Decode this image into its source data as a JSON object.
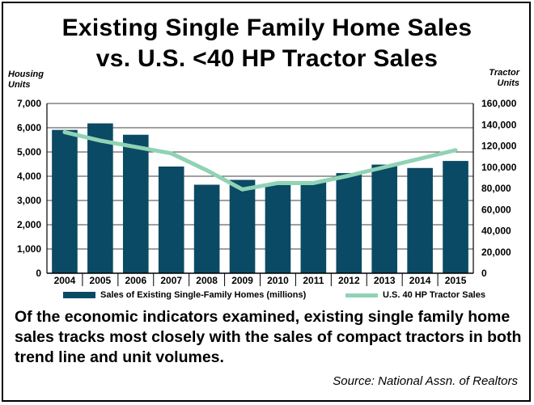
{
  "title_line1": "Existing Single Family Home Sales",
  "title_line2": "vs.  U.S. <40 HP Tractor Sales",
  "left_axis_title": [
    "Housing",
    "Units"
  ],
  "right_axis_title": [
    "Tractor",
    "Units"
  ],
  "caption": "Of the economic indicators examined, existing single family home sales tracks most closely with the sales of compact tractors in both trend line and unit volumes.",
  "source": "Source: National Assn. of Realtors",
  "legend": {
    "bars": "Sales of Existing Single-Family Homes (millions)",
    "line": "U.S. 40 HP Tractor Sales"
  },
  "colors": {
    "bar": "#0b4a64",
    "line": "#8fd3b5",
    "grid": "#000000"
  },
  "chart_data": {
    "type": "bar",
    "categories": [
      "2004",
      "2005",
      "2006",
      "2007",
      "2008",
      "2009",
      "2010",
      "2011",
      "2012",
      "2013",
      "2014",
      "2015"
    ],
    "series": [
      {
        "name": "Sales of Existing Single-Family Homes (millions)",
        "type": "bar",
        "axis": "left",
        "values": [
          5910,
          6180,
          5710,
          4400,
          3650,
          3850,
          3700,
          3800,
          4130,
          4480,
          4340,
          4630
        ]
      },
      {
        "name": "U.S. 40 HP Tractor Sales",
        "type": "line",
        "axis": "right",
        "values": [
          133000,
          125000,
          119000,
          113000,
          97000,
          79000,
          85000,
          85000,
          92000,
          100000,
          108000,
          116000
        ]
      }
    ],
    "y_left": {
      "ylim": [
        0,
        7000
      ],
      "ticks": [
        "0",
        "1,000",
        "2,000",
        "3,000",
        "4,000",
        "5,000",
        "6,000",
        "7,000"
      ]
    },
    "y_right": {
      "ylim": [
        0,
        160000
      ],
      "ticks": [
        "0",
        "20,000",
        "40,000",
        "60,000",
        "80,000",
        "100,000",
        "120,000",
        "140,000",
        "160,000"
      ]
    },
    "grid": true,
    "legend_position": "bottom"
  }
}
